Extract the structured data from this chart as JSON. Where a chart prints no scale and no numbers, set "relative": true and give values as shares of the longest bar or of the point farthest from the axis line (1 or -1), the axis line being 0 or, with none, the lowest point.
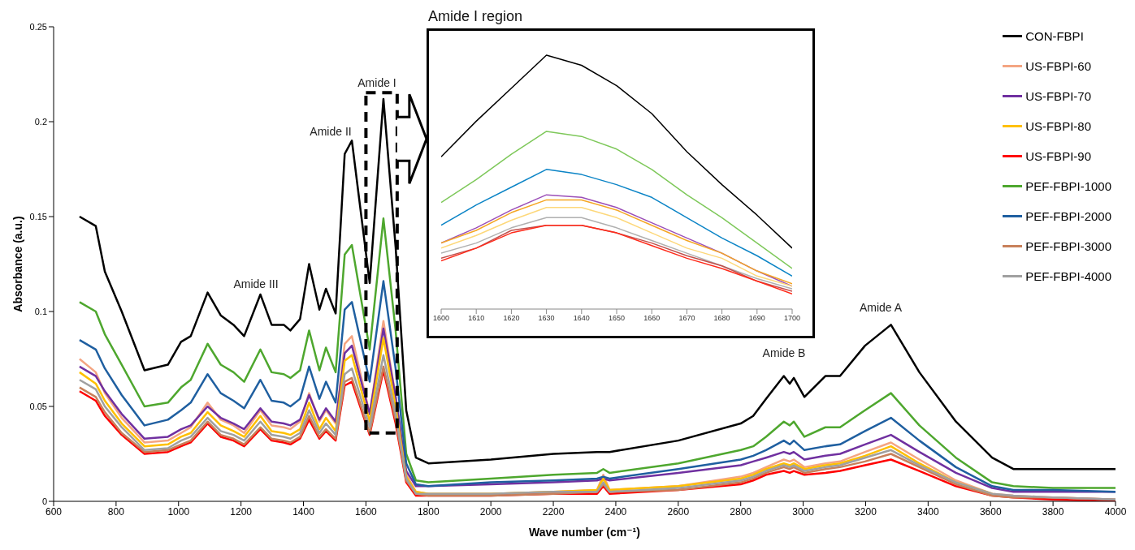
{
  "chart_data": [
    {
      "type": "line",
      "xlabel": "Wave number (cm⁻¹)",
      "ylabel": "Absorbance (a.u.)",
      "xlim": [
        600,
        4000
      ],
      "xticks": [
        600,
        800,
        1000,
        1200,
        1400,
        1600,
        1800,
        2000,
        2200,
        2400,
        2600,
        2800,
        3000,
        3200,
        3400,
        3600,
        3800,
        4000
      ],
      "ylim": [
        0,
        0.25
      ],
      "yticks": [
        0,
        0.05,
        0.1,
        0.15,
        0.2,
        0.25
      ],
      "legend": "top right",
      "x": [
        683,
        735,
        764,
        818,
        891,
        966,
        1008,
        1039,
        1093,
        1135,
        1176,
        1210,
        1262,
        1298,
        1337,
        1358,
        1389,
        1418,
        1451,
        1472,
        1503,
        1532,
        1555,
        1612,
        1656,
        1695,
        1729,
        1760,
        1800,
        2000,
        2200,
        2340,
        2360,
        2380,
        2600,
        2800,
        2840,
        2881,
        2938,
        2957,
        2970,
        3004,
        3071,
        3118,
        3198,
        3281,
        3372,
        3489,
        3605,
        3673,
        3800,
        4000
      ],
      "annotations": [
        "Amide III",
        "Amide II",
        "Amide I",
        "Amide B",
        "Amide A"
      ],
      "series": [
        {
          "name": "CON-FBPI",
          "color": "#000000",
          "values": [
            0.15,
            0.145,
            0.121,
            0.1,
            0.069,
            0.072,
            0.084,
            0.087,
            0.11,
            0.098,
            0.093,
            0.087,
            0.109,
            0.093,
            0.093,
            0.09,
            0.096,
            0.125,
            0.101,
            0.112,
            0.099,
            0.183,
            0.19,
            0.115,
            0.212,
            0.134,
            0.048,
            0.023,
            0.02,
            0.022,
            0.025,
            0.026,
            0.026,
            0.026,
            0.032,
            0.041,
            0.045,
            0.054,
            0.066,
            0.062,
            0.065,
            0.055,
            0.066,
            0.066,
            0.082,
            0.093,
            0.068,
            0.042,
            0.023,
            0.017,
            0.017,
            0.017
          ]
        },
        {
          "name": "US-FBPI-60",
          "color": "#f4a582",
          "values": [
            0.075,
            0.068,
            0.057,
            0.044,
            0.031,
            0.032,
            0.036,
            0.039,
            0.052,
            0.043,
            0.04,
            0.036,
            0.048,
            0.04,
            0.039,
            0.038,
            0.042,
            0.057,
            0.042,
            0.048,
            0.041,
            0.083,
            0.087,
            0.046,
            0.095,
            0.055,
            0.014,
            0.005,
            0.004,
            0.004,
            0.005,
            0.006,
            0.014,
            0.006,
            0.008,
            0.013,
            0.015,
            0.018,
            0.022,
            0.021,
            0.022,
            0.018,
            0.02,
            0.021,
            0.026,
            0.031,
            0.022,
            0.011,
            0.004,
            0.003,
            0.002,
            0.001
          ]
        },
        {
          "name": "US-FBPI-70",
          "color": "#7030a0",
          "values": [
            0.071,
            0.066,
            0.058,
            0.046,
            0.033,
            0.034,
            0.038,
            0.04,
            0.05,
            0.044,
            0.041,
            0.038,
            0.049,
            0.042,
            0.041,
            0.04,
            0.043,
            0.056,
            0.043,
            0.049,
            0.042,
            0.078,
            0.082,
            0.046,
            0.091,
            0.055,
            0.016,
            0.008,
            0.008,
            0.009,
            0.01,
            0.011,
            0.012,
            0.011,
            0.015,
            0.019,
            0.021,
            0.023,
            0.026,
            0.025,
            0.026,
            0.022,
            0.024,
            0.025,
            0.03,
            0.035,
            0.026,
            0.015,
            0.007,
            0.005,
            0.005,
            0.005
          ]
        },
        {
          "name": "US-FBPI-80",
          "color": "#ffc000",
          "values": [
            0.068,
            0.062,
            0.053,
            0.041,
            0.029,
            0.03,
            0.034,
            0.036,
            0.047,
            0.04,
            0.037,
            0.034,
            0.045,
            0.037,
            0.036,
            0.035,
            0.038,
            0.052,
            0.038,
            0.044,
            0.037,
            0.074,
            0.077,
            0.042,
            0.086,
            0.05,
            0.013,
            0.005,
            0.004,
            0.004,
            0.005,
            0.006,
            0.012,
            0.006,
            0.008,
            0.012,
            0.014,
            0.017,
            0.02,
            0.019,
            0.02,
            0.017,
            0.019,
            0.02,
            0.024,
            0.029,
            0.02,
            0.01,
            0.004,
            null,
            null,
            null
          ]
        },
        {
          "name": "US-FBPI-90",
          "color": "#ff0000",
          "values": [
            0.058,
            0.053,
            0.045,
            0.035,
            0.025,
            0.026,
            0.029,
            0.031,
            0.041,
            0.034,
            0.032,
            0.029,
            0.038,
            0.032,
            0.031,
            0.03,
            0.033,
            0.043,
            0.033,
            0.037,
            0.032,
            0.061,
            0.063,
            0.035,
            0.069,
            0.041,
            0.01,
            0.003,
            0.003,
            0.003,
            0.004,
            0.004,
            0.008,
            0.004,
            0.006,
            0.009,
            0.011,
            0.014,
            0.016,
            0.015,
            0.016,
            0.014,
            0.015,
            0.016,
            0.019,
            0.022,
            0.016,
            0.008,
            0.003,
            0.002,
            0.001,
            0.0
          ]
        },
        {
          "name": "PEF-FBPI-1000",
          "color": "#4ea72e",
          "values": [
            0.105,
            0.1,
            0.088,
            0.072,
            0.05,
            0.052,
            0.06,
            0.064,
            0.083,
            0.072,
            0.068,
            0.063,
            0.08,
            0.068,
            0.067,
            0.065,
            0.069,
            0.09,
            0.069,
            0.081,
            0.068,
            0.13,
            0.135,
            0.08,
            0.149,
            0.09,
            0.025,
            0.011,
            0.01,
            0.012,
            0.014,
            0.015,
            0.017,
            0.015,
            0.02,
            0.027,
            0.029,
            0.034,
            0.042,
            0.04,
            0.042,
            0.034,
            0.039,
            0.039,
            0.048,
            0.057,
            0.04,
            0.023,
            0.01,
            0.008,
            0.007,
            0.007
          ]
        },
        {
          "name": "PEF-FBPI-2000",
          "color": "#1f5fa0",
          "values": [
            0.085,
            0.08,
            0.07,
            0.056,
            0.04,
            0.043,
            0.048,
            0.052,
            0.067,
            0.057,
            0.053,
            0.049,
            0.064,
            0.053,
            0.052,
            0.05,
            0.054,
            0.071,
            0.054,
            0.063,
            0.052,
            0.101,
            0.105,
            0.063,
            0.116,
            0.07,
            0.02,
            0.009,
            0.008,
            0.01,
            0.011,
            0.012,
            0.013,
            0.012,
            0.017,
            0.022,
            0.024,
            0.027,
            0.032,
            0.03,
            0.032,
            0.027,
            0.029,
            0.03,
            0.037,
            0.044,
            0.032,
            0.018,
            0.008,
            0.006,
            0.006,
            0.005
          ]
        },
        {
          "name": "PEF-FBPI-3000",
          "color": "#c8805a",
          "values": [
            0.06,
            0.055,
            0.047,
            0.036,
            0.026,
            0.027,
            0.03,
            0.032,
            0.042,
            0.035,
            0.033,
            0.03,
            0.039,
            0.033,
            0.032,
            0.031,
            0.034,
            0.045,
            0.034,
            0.038,
            0.033,
            0.063,
            0.065,
            0.036,
            0.071,
            0.043,
            0.011,
            0.004,
            0.003,
            0.003,
            0.004,
            0.005,
            0.009,
            0.005,
            0.006,
            0.01,
            0.012,
            0.015,
            0.018,
            0.017,
            0.018,
            0.015,
            0.017,
            0.018,
            0.021,
            0.025,
            0.018,
            0.009,
            0.003,
            0.002,
            0.002,
            0.001
          ]
        },
        {
          "name": "PEF-FBPI-4000",
          "color": "#a0a0a0",
          "values": [
            0.064,
            0.059,
            0.05,
            0.039,
            0.027,
            0.028,
            0.032,
            0.034,
            0.044,
            0.037,
            0.035,
            0.032,
            0.042,
            0.035,
            0.034,
            0.033,
            0.036,
            0.048,
            0.036,
            0.041,
            0.035,
            0.067,
            0.07,
            0.039,
            0.077,
            0.046,
            0.012,
            0.004,
            0.004,
            0.004,
            0.005,
            0.005,
            0.01,
            0.005,
            0.007,
            0.011,
            0.013,
            0.016,
            0.019,
            0.018,
            0.019,
            0.016,
            0.018,
            0.019,
            0.023,
            0.027,
            0.019,
            0.01,
            0.004,
            0.003,
            0.002,
            0.001
          ]
        }
      ]
    },
    {
      "type": "line",
      "title": "Amide I region",
      "relative": true,
      "xlim": [
        1600,
        1700
      ],
      "xticks": [
        1600,
        1610,
        1620,
        1630,
        1640,
        1650,
        1660,
        1670,
        1680,
        1690,
        1700
      ],
      "x": [
        1600,
        1610,
        1620,
        1630,
        1640,
        1650,
        1660,
        1670,
        1680,
        1690,
        1700
      ],
      "series": [
        {
          "color": "#000000",
          "values": [
            0.6,
            0.74,
            0.87,
            1,
            0.96,
            0.88,
            0.77,
            0.62,
            0.49,
            0.37,
            0.24
          ]
        },
        {
          "color": "#7ec85a",
          "values": [
            0.42,
            0.51,
            0.61,
            0.7,
            0.68,
            0.63,
            0.55,
            0.45,
            0.36,
            0.26,
            0.16
          ]
        },
        {
          "color": "#0b84c6",
          "values": [
            0.33,
            0.41,
            0.48,
            0.55,
            0.53,
            0.49,
            0.44,
            0.36,
            0.28,
            0.21,
            0.13
          ]
        },
        {
          "color": "#9b4fb8",
          "values": [
            0.26,
            0.32,
            0.39,
            0.45,
            0.44,
            0.4,
            0.34,
            0.28,
            0.22,
            0.15,
            0.09
          ]
        },
        {
          "color": "#f5a623",
          "values": [
            0.26,
            0.31,
            0.38,
            0.43,
            0.43,
            0.39,
            0.33,
            0.27,
            0.22,
            0.15,
            0.1
          ]
        },
        {
          "color": "#fdd87a",
          "values": [
            0.24,
            0.29,
            0.35,
            0.4,
            0.4,
            0.36,
            0.3,
            0.24,
            0.2,
            0.13,
            0.09
          ]
        },
        {
          "color": "#b0b0b0",
          "values": [
            0.22,
            0.26,
            0.32,
            0.36,
            0.36,
            0.32,
            0.27,
            0.22,
            0.17,
            0.12,
            0.08
          ]
        },
        {
          "color": "#c0504d",
          "values": [
            0.2,
            0.24,
            0.31,
            0.33,
            0.33,
            0.3,
            0.26,
            0.21,
            0.17,
            0.11,
            0.07
          ]
        },
        {
          "color": "#ff2a1a",
          "values": [
            0.19,
            0.24,
            0.3,
            0.33,
            0.33,
            0.3,
            0.25,
            0.2,
            0.16,
            0.11,
            0.06
          ]
        }
      ]
    }
  ]
}
